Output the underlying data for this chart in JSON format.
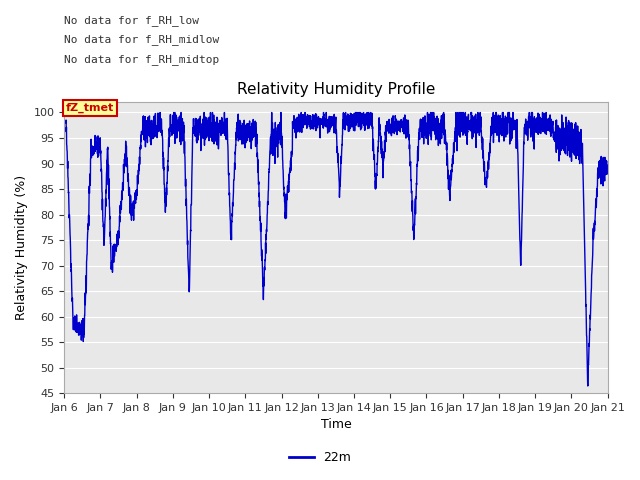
{
  "title": "Relativity Humidity Profile",
  "xlabel": "Time",
  "ylabel": "Relativity Humidity (%)",
  "ylim": [
    45,
    102
  ],
  "yticks": [
    45,
    50,
    55,
    60,
    65,
    70,
    75,
    80,
    85,
    90,
    95,
    100
  ],
  "line_color": "#0000cc",
  "line_width": 1.0,
  "legend_label": "22m",
  "annotations": [
    "No data for f_RH_low",
    "No data for f_RH_midlow",
    "No data for f_RH_midtop"
  ],
  "annotation_color": "#333333",
  "tooltip_text": "fZ_tmet",
  "tooltip_bg": "#ffff99",
  "tooltip_border": "#cc0000",
  "background_color": "#ffffff",
  "plot_bg_color": "#e8e8e8",
  "grid_color": "#ffffff",
  "x_start_day": 6,
  "x_end_day": 21,
  "xtick_labels": [
    "Jan 6",
    "Jan 7",
    "Jan 8",
    "Jan 9",
    "Jan 10",
    "Jan 11",
    "Jan 12",
    "Jan 13",
    "Jan 14",
    "Jan 15",
    "Jan 16",
    "Jan 17",
    "Jan 18",
    "Jan 19",
    "Jan 20",
    "Jan 21"
  ],
  "xtick_positions": [
    6,
    7,
    8,
    9,
    10,
    11,
    12,
    13,
    14,
    15,
    16,
    17,
    18,
    19,
    20,
    21
  ],
  "figsize": [
    6.4,
    4.8
  ],
  "dpi": 100
}
